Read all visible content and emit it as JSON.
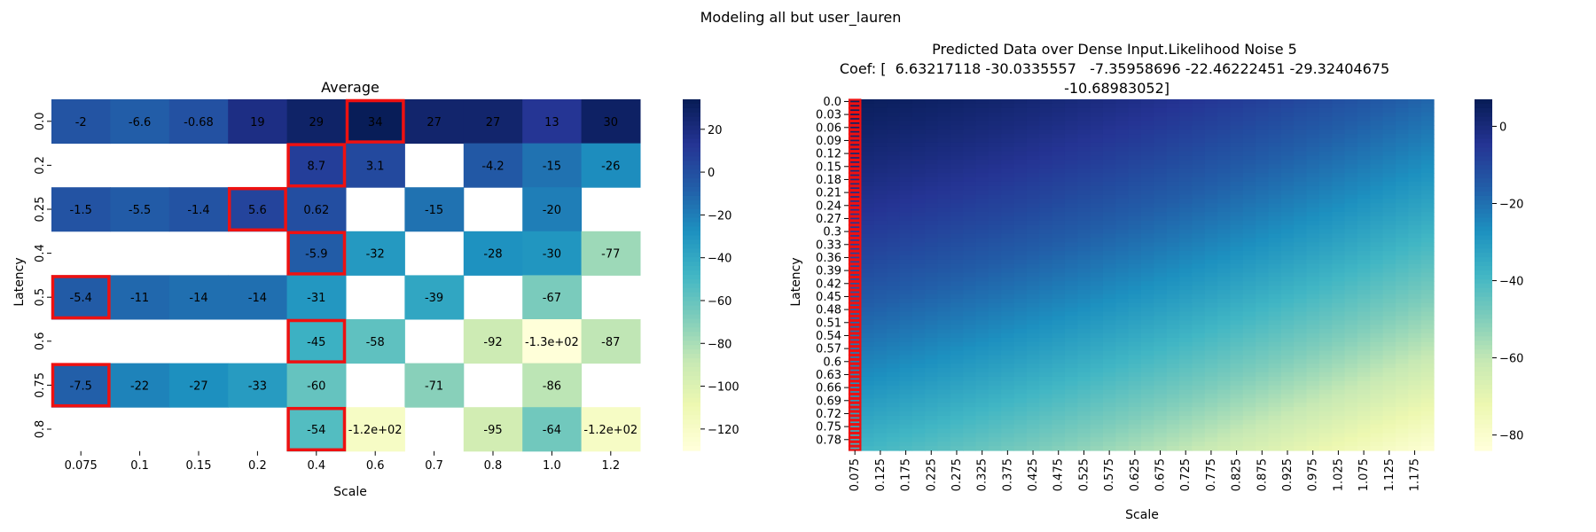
{
  "figure": {
    "suptitle": "Modeling all but user_lauren"
  },
  "chart_data": [
    {
      "type": "heatmap",
      "title": "Average",
      "xlabel": "Scale",
      "ylabel": "Latency",
      "x_categories": [
        "0.075",
        "0.1",
        "0.15",
        "0.2",
        "0.4",
        "0.6",
        "0.7",
        "0.8",
        "1.0",
        "1.2"
      ],
      "y_categories": [
        "0.0",
        "0.2",
        "0.25",
        "0.4",
        "0.5",
        "0.6",
        "0.75",
        "0.8"
      ],
      "values": [
        [
          -2,
          -6.6,
          -0.68,
          19,
          29,
          34,
          27,
          27,
          13,
          30
        ],
        [
          null,
          null,
          null,
          null,
          8.7,
          3.1,
          null,
          -4.2,
          -15,
          -26
        ],
        [
          -1.5,
          -5.5,
          -1.4,
          5.6,
          0.62,
          null,
          -15,
          null,
          -20,
          null
        ],
        [
          null,
          null,
          null,
          null,
          -5.9,
          -32,
          null,
          -28,
          -30,
          -77
        ],
        [
          -5.4,
          -11,
          -14,
          -14,
          -31,
          null,
          -39,
          null,
          -67,
          null
        ],
        [
          null,
          null,
          null,
          null,
          -45,
          -58,
          null,
          -92,
          -130,
          -87
        ],
        [
          -7.5,
          -22,
          -27,
          -33,
          -60,
          null,
          -71,
          null,
          -86,
          null
        ],
        [
          null,
          null,
          null,
          null,
          -54,
          -120,
          null,
          -95,
          -64,
          -120
        ]
      ],
      "cell_labels": [
        [
          "-2",
          "-6.6",
          "-0.68",
          "19",
          "29",
          "34",
          "27",
          "27",
          "13",
          "30"
        ],
        [
          "",
          "",
          "",
          "",
          "8.7",
          "3.1",
          "",
          "-4.2",
          "-15",
          "-26"
        ],
        [
          "-1.5",
          "-5.5",
          "-1.4",
          "5.6",
          "0.62",
          "",
          "-15",
          "",
          "-20",
          ""
        ],
        [
          "",
          "",
          "",
          "",
          "-5.9",
          "-32",
          "",
          "-28",
          "-30",
          "-77"
        ],
        [
          "-5.4",
          "-11",
          "-14",
          "-14",
          "-31",
          "",
          "-39",
          "",
          "-67",
          ""
        ],
        [
          "",
          "",
          "",
          "",
          "-45",
          "-58",
          "",
          "-92",
          "-1.3e+02",
          "-87"
        ],
        [
          "-7.5",
          "-22",
          "-27",
          "-33",
          "-60",
          "",
          "-71",
          "",
          "-86",
          ""
        ],
        [
          "",
          "",
          "",
          "",
          "-54",
          "-1.2e+02",
          "",
          "-95",
          "-64",
          "-1.2e+02"
        ]
      ],
      "highlighted_cells": [
        [
          0,
          5
        ],
        [
          1,
          4
        ],
        [
          2,
          3
        ],
        [
          3,
          4
        ],
        [
          4,
          0
        ],
        [
          5,
          4
        ],
        [
          6,
          0
        ],
        [
          7,
          4
        ]
      ],
      "highlight_color": "#ee1111",
      "vmin": -130,
      "vmax": 34,
      "colorbar_ticks": [
        20,
        0,
        -20,
        -40,
        -60,
        -80,
        -100,
        -120
      ],
      "colormap": "YlGnBu"
    },
    {
      "type": "heatmap",
      "title_lines": [
        "Predicted Data over Dense Input.Likelihood Noise 5",
        "Coef: [  6.63217118 -30.0335557   -7.35958696 -22.46222451 -29.32404675",
        " -10.68983052]"
      ],
      "xlabel": "Scale",
      "ylabel": "Latency",
      "x_tick_labels": [
        "0.075",
        "0.125",
        "0.175",
        "0.225",
        "0.275",
        "0.325",
        "0.375",
        "0.425",
        "0.475",
        "0.525",
        "0.575",
        "0.625",
        "0.675",
        "0.725",
        "0.775",
        "0.825",
        "0.875",
        "0.925",
        "0.975",
        "1.025",
        "1.075",
        "1.125",
        "1.175"
      ],
      "y_tick_labels": [
        "0.0",
        "0.03",
        "0.06",
        "0.09",
        "0.12",
        "0.15",
        "0.18",
        "0.21",
        "0.24",
        "0.27",
        "0.3",
        "0.33",
        "0.36",
        "0.39",
        "0.42",
        "0.45",
        "0.48",
        "0.51",
        "0.54",
        "0.57",
        "0.6",
        "0.63",
        "0.66",
        "0.69",
        "0.72",
        "0.75",
        "0.78"
      ],
      "x_range": [
        0.075,
        1.2
      ],
      "x_step": 0.025,
      "y_range": [
        0.0,
        0.8
      ],
      "y_step": 0.01,
      "coef": [
        6.63217118,
        -30.0335557,
        -7.35958696,
        -22.46222451,
        -29.32404675,
        -10.68983052
      ],
      "vmin": -84,
      "vmax": 7,
      "colorbar_ticks": [
        0,
        -20,
        -40,
        -60,
        -80
      ],
      "highlighted_column": "0.075",
      "highlight_color": "#ee1111",
      "colormap": "YlGnBu"
    }
  ]
}
